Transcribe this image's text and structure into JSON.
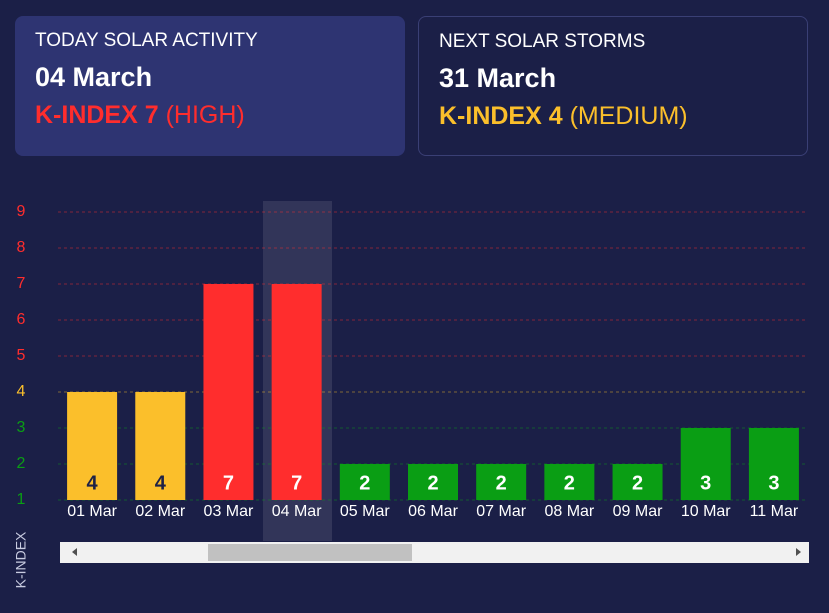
{
  "cards": [
    {
      "title": "TODAY SOLAR ACTIVITY",
      "date": "04 March",
      "index": "K-INDEX 7",
      "level": "(HIGH)",
      "color": "#ff2d2d"
    },
    {
      "title": "NEXT SOLAR STORMS",
      "date": "31 March",
      "index": "K-INDEX 4",
      "level": "(MEDIUM)",
      "color": "#fbbf2b"
    }
  ],
  "chart_data": {
    "type": "bar",
    "y_label": "K-INDEX",
    "categories": [
      "01 Mar",
      "02 Mar",
      "03 Mar",
      "04 Mar",
      "05 Mar",
      "06 Mar",
      "07 Mar",
      "08 Mar",
      "09 Mar",
      "10 Mar",
      "11 Mar"
    ],
    "values": [
      4,
      4,
      7,
      7,
      2,
      2,
      2,
      2,
      2,
      3,
      3
    ],
    "colors": [
      "#fbbf2b",
      "#fbbf2b",
      "#ff2d2d",
      "#ff2d2d",
      "#0a9e14",
      "#0a9e14",
      "#0a9e14",
      "#0a9e14",
      "#0a9e14",
      "#0a9e14",
      "#0a9e14"
    ],
    "ylim": [
      1,
      9
    ],
    "yticks": [
      1,
      2,
      3,
      4,
      5,
      6,
      7,
      8,
      9
    ],
    "ytick_colors": [
      "#0a9e14",
      "#0a9e14",
      "#0a9e14",
      "#fbbf2b",
      "#ff2d2d",
      "#ff2d2d",
      "#ff2d2d",
      "#ff2d2d",
      "#ff2d2d"
    ],
    "grid": true
  }
}
